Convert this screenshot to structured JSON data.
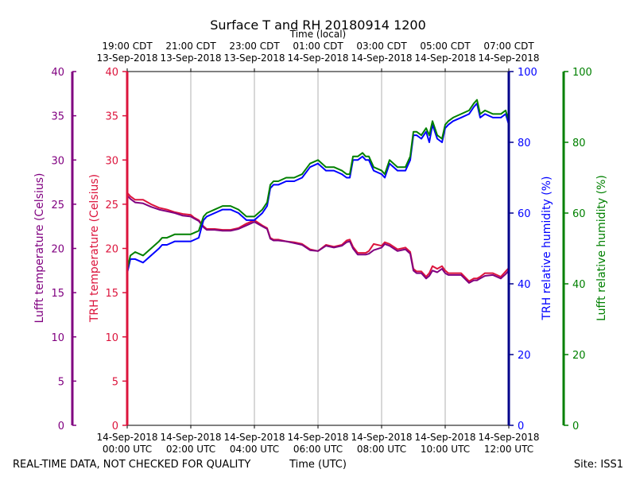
{
  "chart_data": {
    "type": "line",
    "title": "Surface T and RH 20180914 1200",
    "top_axis_label": "Time (local)",
    "xlabel": "Time (UTC)",
    "footer_left": "REAL-TIME DATA, NOT CHECKED FOR QUALITY",
    "footer_right": "Site: ISS1",
    "x_range_hours": [
      0,
      12
    ],
    "bottom_ticks": [
      {
        "hour": 0,
        "line1": "14-Sep-2018",
        "line2": "00:00 UTC"
      },
      {
        "hour": 2,
        "line1": "14-Sep-2018",
        "line2": "02:00 UTC"
      },
      {
        "hour": 4,
        "line1": "14-Sep-2018",
        "line2": "04:00 UTC"
      },
      {
        "hour": 6,
        "line1": "14-Sep-2018",
        "line2": "06:00 UTC"
      },
      {
        "hour": 8,
        "line1": "14-Sep-2018",
        "line2": "08:00 UTC"
      },
      {
        "hour": 10,
        "line1": "14-Sep-2018",
        "line2": "10:00 UTC"
      },
      {
        "hour": 12,
        "line1": "14-Sep-2018",
        "line2": "12:00 UTC"
      }
    ],
    "top_ticks": [
      {
        "hour": 0,
        "line1": "19:00 CDT",
        "line2": "13-Sep-2018"
      },
      {
        "hour": 2,
        "line1": "21:00 CDT",
        "line2": "13-Sep-2018"
      },
      {
        "hour": 4,
        "line1": "23:00 CDT",
        "line2": "13-Sep-2018"
      },
      {
        "hour": 6,
        "line1": "01:00 CDT",
        "line2": "14-Sep-2018"
      },
      {
        "hour": 8,
        "line1": "03:00 CDT",
        "line2": "14-Sep-2018"
      },
      {
        "hour": 10,
        "line1": "05:00 CDT",
        "line2": "14-Sep-2018"
      },
      {
        "hour": 12,
        "line1": "07:00 CDT",
        "line2": "14-Sep-2018"
      }
    ],
    "temperature_axes": {
      "ylim": [
        0,
        40
      ],
      "ticks": [
        0,
        5,
        10,
        15,
        20,
        25,
        30,
        35,
        40
      ],
      "lufft_label": "Lufft temperature (Celsius)",
      "trh_label": "TRH temperature (Celsius)"
    },
    "humidity_axes": {
      "ylim": [
        0,
        100
      ],
      "ticks": [
        0,
        20,
        40,
        60,
        80,
        100
      ],
      "trh_label": "TRH relative humidity (%)",
      "lufft_label": "Lufft relative humidity (%)"
    },
    "colors": {
      "lufft_temp": "#800080",
      "trh_temp": "#dc143c",
      "trh_rh": "#0000ff",
      "lufft_rh": "#008000",
      "grid": "#b0b0b0"
    },
    "series": [
      {
        "name": "TRH temperature",
        "axis": "temperature",
        "color": "#dc143c",
        "x": [
          0,
          0.1,
          0.25,
          0.5,
          0.75,
          1,
          1.25,
          1.5,
          1.75,
          2,
          2.1,
          2.25,
          2.4,
          2.5,
          2.75,
          3,
          3.25,
          3.5,
          3.75,
          4,
          4.25,
          4.4,
          4.5,
          4.6,
          4.75,
          5,
          5.25,
          5.5,
          5.75,
          6,
          6.25,
          6.5,
          6.75,
          6.9,
          7,
          7.1,
          7.25,
          7.5,
          7.6,
          7.75,
          8,
          8.1,
          8.25,
          8.5,
          8.75,
          8.9,
          9,
          9.1,
          9.25,
          9.4,
          9.5,
          9.6,
          9.75,
          9.9,
          10,
          10.1,
          10.25,
          10.5,
          10.75,
          10.9,
          11,
          11.1,
          11.25,
          11.5,
          11.75,
          11.9,
          12
        ],
        "values": [
          26.3,
          25.9,
          25.5,
          25.5,
          25.0,
          24.6,
          24.4,
          24.1,
          23.9,
          23.8,
          23.5,
          23.2,
          22.5,
          22.2,
          22.2,
          22.1,
          22.1,
          22.3,
          22.8,
          23.2,
          22.6,
          22.3,
          21.2,
          21.0,
          21.0,
          20.8,
          20.7,
          20.5,
          19.9,
          19.7,
          20.4,
          20.2,
          20.4,
          20.9,
          21.0,
          20.2,
          19.5,
          19.5,
          19.7,
          20.5,
          20.3,
          20.7,
          20.5,
          19.9,
          20.1,
          19.6,
          17.7,
          17.4,
          17.4,
          16.8,
          17.2,
          18.0,
          17.7,
          18.0,
          17.5,
          17.2,
          17.2,
          17.2,
          16.3,
          16.6,
          16.6,
          16.8,
          17.2,
          17.2,
          16.8,
          17.4,
          17.8
        ]
      },
      {
        "name": "Lufft temperature",
        "axis": "temperature",
        "color": "#800080",
        "x": [
          0,
          0.1,
          0.25,
          0.5,
          0.75,
          1,
          1.25,
          1.5,
          1.75,
          2,
          2.1,
          2.25,
          2.4,
          2.5,
          2.75,
          3,
          3.25,
          3.5,
          3.75,
          4,
          4.25,
          4.4,
          4.5,
          4.6,
          4.75,
          5,
          5.25,
          5.5,
          5.75,
          6,
          6.25,
          6.5,
          6.75,
          6.9,
          7,
          7.1,
          7.25,
          7.5,
          7.6,
          7.75,
          8,
          8.1,
          8.25,
          8.5,
          8.75,
          8.9,
          9,
          9.1,
          9.25,
          9.4,
          9.5,
          9.6,
          9.75,
          9.9,
          10,
          10.1,
          10.25,
          10.5,
          10.75,
          10.9,
          11,
          11.1,
          11.25,
          11.5,
          11.75,
          11.9,
          12
        ],
        "values": [
          26.0,
          25.6,
          25.2,
          25.1,
          24.7,
          24.4,
          24.2,
          24.0,
          23.7,
          23.6,
          23.4,
          23.1,
          22.4,
          22.1,
          22.1,
          22.0,
          22.0,
          22.2,
          22.6,
          23.0,
          22.5,
          22.2,
          21.1,
          20.9,
          20.9,
          20.8,
          20.6,
          20.4,
          19.8,
          19.7,
          20.3,
          20.1,
          20.3,
          20.7,
          20.8,
          20.0,
          19.3,
          19.3,
          19.4,
          19.8,
          20.1,
          20.5,
          20.3,
          19.7,
          19.9,
          19.4,
          17.5,
          17.2,
          17.2,
          16.6,
          16.9,
          17.5,
          17.3,
          17.7,
          17.2,
          17.0,
          17.0,
          17.0,
          16.1,
          16.4,
          16.4,
          16.6,
          16.9,
          17.0,
          16.6,
          17.1,
          17.5
        ]
      },
      {
        "name": "TRH relative humidity",
        "axis": "humidity",
        "color": "#0000ff",
        "x": [
          0,
          0.1,
          0.25,
          0.5,
          0.75,
          1,
          1.1,
          1.25,
          1.5,
          1.75,
          2,
          2.25,
          2.4,
          2.5,
          2.75,
          3,
          3.25,
          3.5,
          3.75,
          4,
          4.25,
          4.4,
          4.5,
          4.6,
          4.75,
          5,
          5.25,
          5.5,
          5.75,
          6,
          6.25,
          6.5,
          6.75,
          6.9,
          7,
          7.1,
          7.25,
          7.4,
          7.5,
          7.6,
          7.75,
          8,
          8.1,
          8.25,
          8.5,
          8.75,
          8.9,
          9,
          9.1,
          9.25,
          9.4,
          9.5,
          9.6,
          9.75,
          9.9,
          10,
          10.1,
          10.25,
          10.5,
          10.75,
          10.9,
          11,
          11.1,
          11.25,
          11.5,
          11.75,
          11.9,
          12
        ],
        "values": [
          43,
          47,
          47,
          46,
          48,
          50,
          51,
          51,
          52,
          52,
          52,
          53,
          58,
          59,
          60,
          61,
          61,
          60,
          58,
          58,
          60,
          62,
          67,
          68,
          68,
          69,
          69,
          70,
          73,
          74,
          72,
          72,
          71,
          70,
          70,
          75,
          75,
          76,
          75,
          75,
          72,
          71,
          70,
          74,
          72,
          72,
          75,
          82,
          82,
          81,
          83,
          80,
          85,
          81,
          80,
          84,
          85,
          86,
          87,
          88,
          90,
          91,
          87,
          88,
          87,
          87,
          88,
          85
        ]
      },
      {
        "name": "Lufft relative humidity",
        "axis": "humidity",
        "color": "#008000",
        "x": [
          0,
          0.1,
          0.25,
          0.5,
          0.75,
          1,
          1.1,
          1.25,
          1.5,
          1.75,
          2,
          2.25,
          2.4,
          2.5,
          2.75,
          3,
          3.25,
          3.5,
          3.75,
          4,
          4.25,
          4.4,
          4.5,
          4.6,
          4.75,
          5,
          5.25,
          5.5,
          5.75,
          6,
          6.25,
          6.5,
          6.75,
          6.9,
          7,
          7.1,
          7.25,
          7.4,
          7.5,
          7.6,
          7.75,
          8,
          8.1,
          8.25,
          8.5,
          8.75,
          8.9,
          9,
          9.1,
          9.25,
          9.4,
          9.5,
          9.6,
          9.75,
          9.9,
          10,
          10.1,
          10.25,
          10.5,
          10.75,
          10.9,
          11,
          11.1,
          11.25,
          11.5,
          11.75,
          11.9,
          12
        ],
        "values": [
          44,
          48,
          49,
          48,
          50,
          52,
          53,
          53,
          54,
          54,
          54,
          55,
          59,
          60,
          61,
          62,
          62,
          61,
          59,
          59,
          61,
          63,
          68,
          69,
          69,
          70,
          70,
          71,
          74,
          75,
          73,
          73,
          72,
          71,
          71,
          76,
          76,
          77,
          76,
          76,
          73,
          72,
          71,
          75,
          73,
          73,
          76,
          83,
          83,
          82,
          84,
          82,
          86,
          82,
          81,
          85,
          86,
          87,
          88,
          89,
          91,
          92,
          88,
          89,
          88,
          88,
          89,
          86
        ]
      }
    ]
  }
}
